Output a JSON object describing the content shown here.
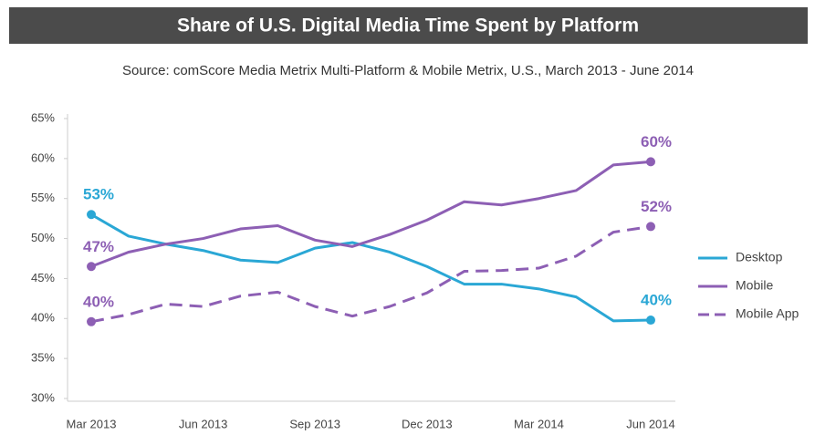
{
  "chart_data": {
    "type": "line",
    "title": "Share of U.S. Digital Media Time Spent by Platform",
    "subtitle": "Source: comScore Media Metrix Multi-Platform & Mobile Metrix, U.S., March 2013 - June 2014",
    "categories": [
      "Mar 2013",
      null,
      null,
      "Jun 2013",
      null,
      null,
      "Sep 2013",
      null,
      null,
      "Dec 2013",
      null,
      null,
      "Mar 2014",
      null,
      null,
      "Jun 2014"
    ],
    "series": [
      {
        "name": "Desktop",
        "color": "#2aa7d5",
        "dashed": false,
        "values": [
          53,
          50.3,
          49.3,
          48.5,
          47.3,
          47,
          48.8,
          49.5,
          48.3,
          46.5,
          44.3,
          44.3,
          43.7,
          42.7,
          39.7,
          39.8
        ],
        "value_labels": [
          "53%",
          null,
          null,
          null,
          null,
          null,
          null,
          null,
          null,
          null,
          null,
          null,
          null,
          null,
          null,
          "40%"
        ]
      },
      {
        "name": "Mobile",
        "color": "#8d5fb4",
        "dashed": false,
        "values": [
          46.5,
          48.3,
          49.3,
          50,
          51.2,
          51.6,
          49.8,
          49,
          50.5,
          52.3,
          54.6,
          54.2,
          55,
          56,
          59.2,
          59.6
        ],
        "value_labels": [
          "47%",
          null,
          null,
          null,
          null,
          null,
          null,
          null,
          null,
          null,
          null,
          null,
          null,
          null,
          null,
          "60%"
        ]
      },
      {
        "name": "Mobile App",
        "color": "#8d5fb4",
        "dashed": true,
        "values": [
          39.6,
          40.5,
          41.8,
          41.5,
          42.8,
          43.3,
          41.5,
          40.3,
          41.5,
          43.2,
          45.9,
          46,
          46.3,
          47.8,
          50.8,
          51.5
        ],
        "value_labels": [
          "40%",
          null,
          null,
          null,
          null,
          null,
          null,
          null,
          null,
          null,
          null,
          null,
          null,
          null,
          null,
          "52%"
        ]
      }
    ],
    "ylim": [
      30,
      65
    ],
    "yticks": [
      {
        "value": 30,
        "label": "30%"
      },
      {
        "value": 35,
        "label": "35%"
      },
      {
        "value": 40,
        "label": "40%"
      },
      {
        "value": 45,
        "label": "45%"
      },
      {
        "value": 50,
        "label": "50%"
      },
      {
        "value": 55,
        "label": "55%"
      },
      {
        "value": 60,
        "label": "60%"
      },
      {
        "value": 65,
        "label": "65%"
      }
    ],
    "grid": false,
    "legend": "right"
  }
}
